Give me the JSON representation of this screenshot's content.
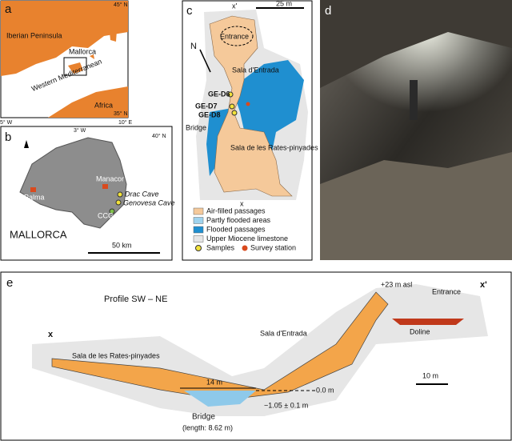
{
  "panel_a": {
    "label": "a",
    "lat_top": "45° N",
    "lat_bottom": "35° N",
    "lon_left": "5° W",
    "lon_right": "10° E",
    "iberia": "Iberian Peninsula",
    "mallorca": "Mallorca",
    "sea": "Western Mediterranean",
    "africa": "Africa"
  },
  "panel_b": {
    "label": "b",
    "lon": "3° W",
    "lat": "40° N",
    "palma": "Palma",
    "manacor": "Manacor",
    "drac": "Drac Cave",
    "genovesa": "Genovesa Cave",
    "ccg": "CCG",
    "island": "MALLORCA",
    "scale": "50 km"
  },
  "panel_c": {
    "label": "c",
    "x_top": "x'",
    "scale": "25 m",
    "entrance": "Entrance",
    "north": "N",
    "sala_entrada": "Sala d'Entrada",
    "ge_d6": "GE-D6",
    "ge_d7": "GE-D7",
    "ge_d8": "GE-D8",
    "bridge": "Bridge",
    "sala_rates": "Sala de les Rates-pinyades",
    "x_bottom": "x",
    "legend": [
      "Air-filled passages",
      "Partly flooded areas",
      "Flooded passages",
      "Upper Miocene limestone",
      "Samples",
      "Survey station"
    ]
  },
  "panel_d": {
    "label": "d"
  },
  "panel_e": {
    "label": "e",
    "title": "Profile SW – NE",
    "x_left": "x",
    "x_right": "x'",
    "elevation": "+23 m asl",
    "entrance": "Entrance",
    "sala_entrada": "Sala d'Entrada",
    "doline": "Doline",
    "sala_rates": "Sala de les Rates-pinyades",
    "scale": "10 m",
    "width": "14 m",
    "zero": "0.0 m",
    "depth": "−1.05 ± 0.1 m",
    "bridge": "Bridge",
    "bridge_length": "(length: 8.62 m)"
  }
}
